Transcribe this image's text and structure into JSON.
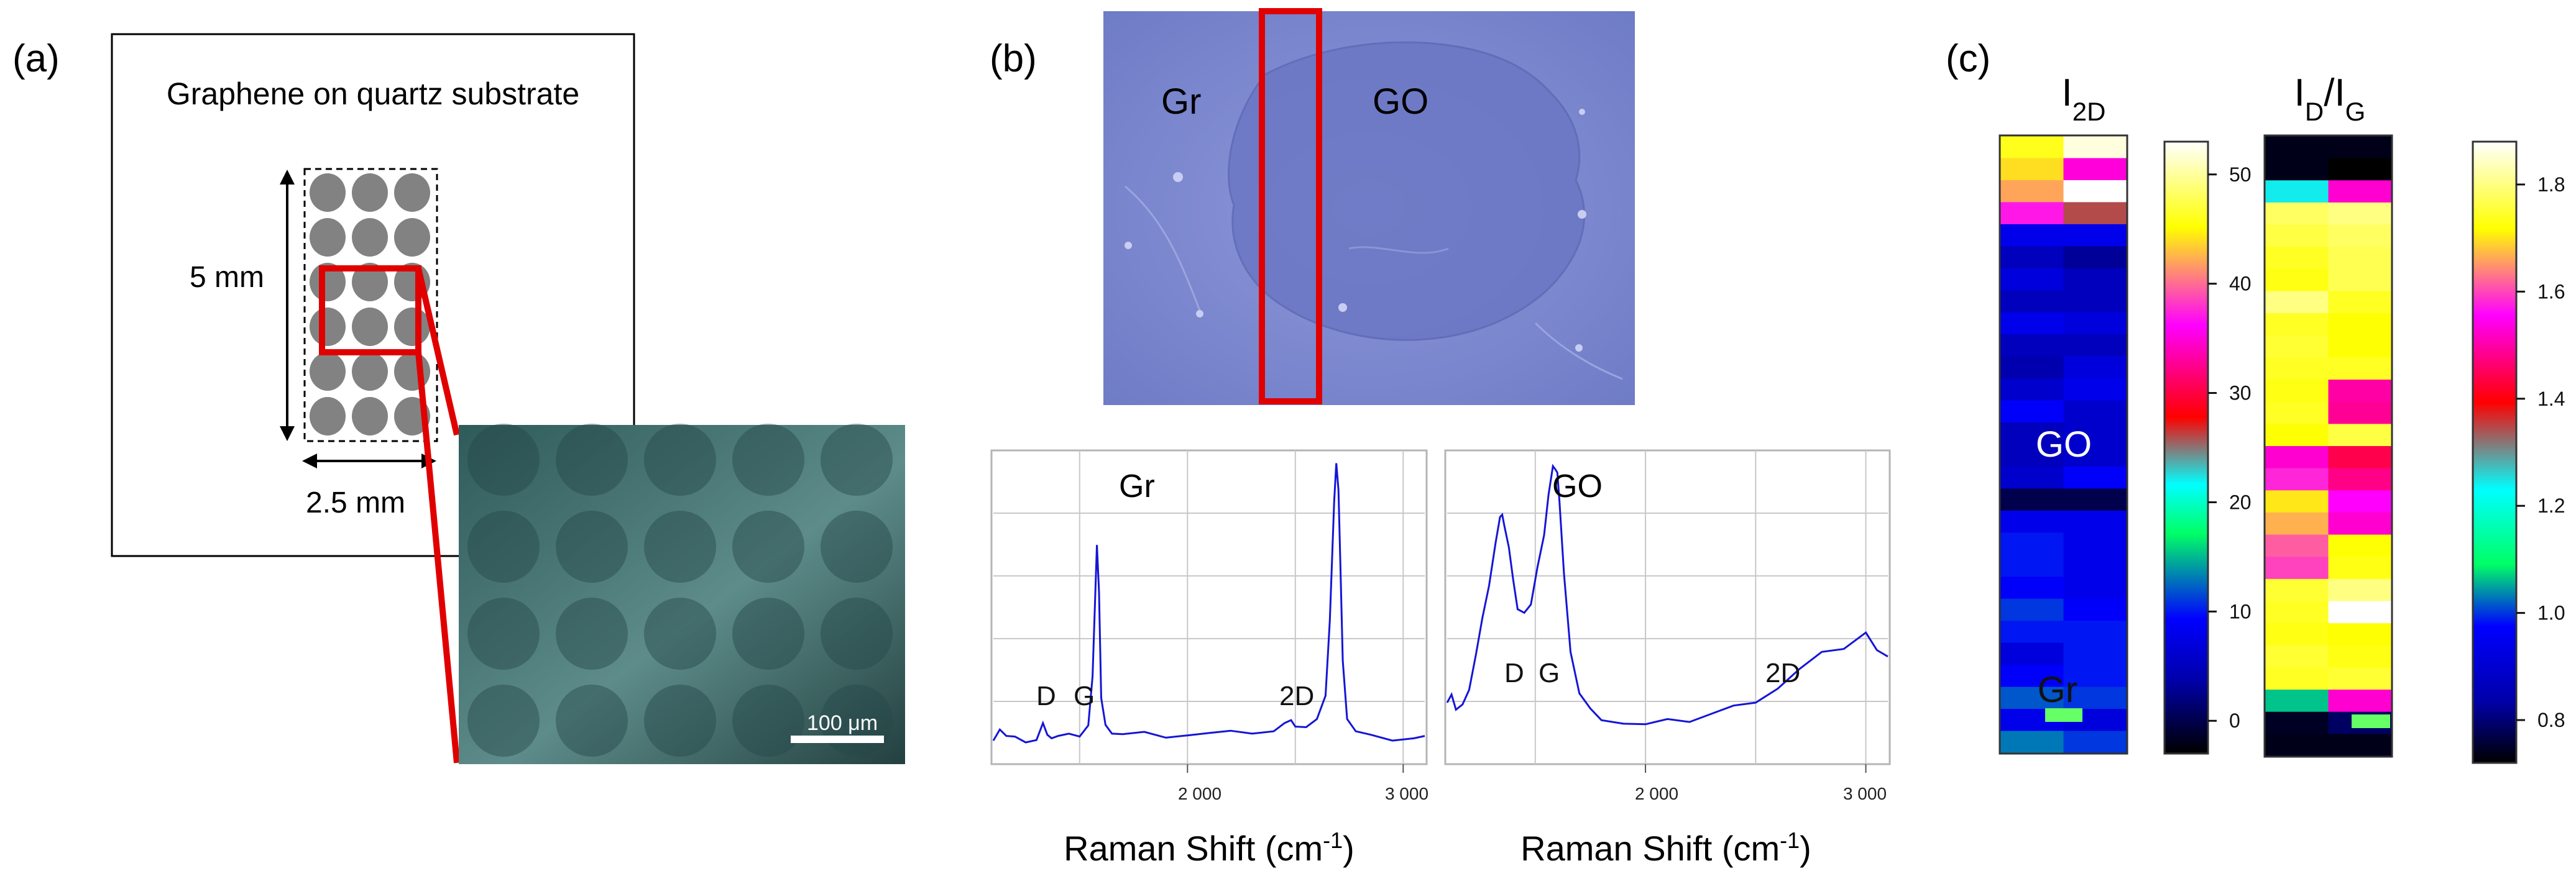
{
  "panels": {
    "a": {
      "label": "(a)",
      "title": "Graphene on quartz substrate",
      "height_dim": "5 mm",
      "width_dim": "2.5 mm",
      "scalebar": "100 μm"
    },
    "b": {
      "label": "(b)",
      "micro_left": "Gr",
      "micro_right": "GO",
      "spectra": [
        {
          "title": "Gr",
          "xlabel": "Raman Shift (cm-1)",
          "xlabel_main": "Raman Shift (cm",
          "xlabel_sup": "-1",
          "xlabel_end": ")",
          "ticks": [
            "2 000",
            "3 000"
          ],
          "peaks": [
            "D",
            "G",
            "2D"
          ]
        },
        {
          "title": "GO",
          "xlabel": "Raman Shift (cm-1)",
          "xlabel_main": "Raman Shift (cm",
          "xlabel_sup": "-1",
          "xlabel_end": ")",
          "ticks": [
            "2 000",
            "3 000"
          ],
          "peaks": [
            "D",
            "G",
            "2D"
          ]
        }
      ]
    },
    "c": {
      "label": "(c)",
      "map1_title_main": "I",
      "map1_title_sub": "2D",
      "map2_title_main": "I",
      "map2_title_sub1": "D",
      "map2_title_sep": "/I",
      "map2_title_sub2": "G",
      "map_label_go": "GO",
      "map_label_gr": "Gr",
      "cb1_ticks": [
        "50",
        "40",
        "30",
        "20",
        "10",
        "0"
      ],
      "cb2_ticks": [
        "1.8",
        "1.6",
        "1.4",
        "1.2",
        "1.0",
        "0.8"
      ]
    }
  },
  "chart_data": [
    {
      "type": "line",
      "title": "Gr",
      "xlabel": "Raman Shift (cm-1)",
      "ylabel": "",
      "xlim": [
        1100,
        3100
      ],
      "xticks": [
        2000,
        3000
      ],
      "series": [
        {
          "name": "Gr",
          "x": [
            1100,
            1130,
            1160,
            1200,
            1250,
            1300,
            1330,
            1350,
            1370,
            1400,
            1450,
            1500,
            1540,
            1560,
            1580,
            1590,
            1600,
            1620,
            1650,
            1700,
            1800,
            1900,
            2000,
            2100,
            2200,
            2300,
            2400,
            2450,
            2480,
            2500,
            2550,
            2600,
            2640,
            2660,
            2680,
            2690,
            2700,
            2710,
            2720,
            2740,
            2780,
            2850,
            2950,
            3050,
            3100
          ],
          "y": [
            0.05,
            0.08,
            0.05,
            0.04,
            0.04,
            0.04,
            0.09,
            0.07,
            0.05,
            0.05,
            0.05,
            0.06,
            0.09,
            0.25,
            0.72,
            0.55,
            0.18,
            0.08,
            0.07,
            0.06,
            0.06,
            0.06,
            0.06,
            0.06,
            0.06,
            0.07,
            0.07,
            0.09,
            0.12,
            0.09,
            0.08,
            0.1,
            0.2,
            0.45,
            0.85,
            1.0,
            0.9,
            0.6,
            0.3,
            0.12,
            0.07,
            0.05,
            0.05,
            0.05,
            0.05
          ]
        }
      ]
    },
    {
      "type": "line",
      "title": "GO",
      "xlabel": "Raman Shift (cm-1)",
      "ylabel": "",
      "xlim": [
        1100,
        3100
      ],
      "xticks": [
        2000,
        3000
      ],
      "series": [
        {
          "name": "GO",
          "x": [
            1100,
            1120,
            1140,
            1170,
            1200,
            1230,
            1260,
            1290,
            1320,
            1340,
            1350,
            1360,
            1380,
            1400,
            1420,
            1450,
            1480,
            1510,
            1540,
            1560,
            1580,
            1590,
            1600,
            1610,
            1630,
            1660,
            1700,
            1750,
            1800,
            1900,
            2000,
            2100,
            2200,
            2300,
            2400,
            2500,
            2600,
            2700,
            2800,
            2900,
            2950,
            3000,
            3050,
            3100
          ],
          "y": [
            0.18,
            0.2,
            0.14,
            0.15,
            0.22,
            0.33,
            0.45,
            0.58,
            0.72,
            0.8,
            0.8,
            0.78,
            0.7,
            0.58,
            0.5,
            0.48,
            0.5,
            0.62,
            0.75,
            0.88,
            0.97,
            0.98,
            0.96,
            0.85,
            0.6,
            0.35,
            0.2,
            0.14,
            0.12,
            0.1,
            0.09,
            0.1,
            0.11,
            0.13,
            0.15,
            0.18,
            0.22,
            0.28,
            0.33,
            0.36,
            0.38,
            0.4,
            0.36,
            0.33
          ]
        }
      ]
    },
    {
      "type": "heatmap",
      "title": "I2D",
      "colorbar_range": [
        -3,
        53
      ],
      "colorbar_ticks": [
        0,
        10,
        20,
        30,
        40,
        50
      ],
      "columns": 2,
      "rows": 28,
      "values": [
        [
          46,
          52
        ],
        [
          44,
          35
        ],
        [
          42,
          54
        ],
        [
          37,
          26
        ],
        [
          8,
          8
        ],
        [
          5,
          3
        ],
        [
          7,
          5
        ],
        [
          5,
          5
        ],
        [
          8,
          7
        ],
        [
          5,
          5
        ],
        [
          4,
          7
        ],
        [
          6,
          8
        ],
        [
          9,
          6
        ],
        [
          5,
          6
        ],
        [
          5,
          6
        ],
        [
          6,
          9
        ],
        [
          0,
          0
        ],
        [
          8,
          8
        ],
        [
          10,
          8
        ],
        [
          10,
          8
        ],
        [
          9,
          8
        ],
        [
          11,
          9
        ],
        [
          10,
          10
        ],
        [
          7,
          10
        ],
        [
          9,
          10
        ],
        [
          12,
          11
        ],
        [
          8,
          7
        ],
        [
          13,
          11
        ]
      ]
    },
    {
      "type": "heatmap",
      "title": "ID/IG",
      "colorbar_range": [
        0.72,
        1.88
      ],
      "colorbar_ticks": [
        0.8,
        1.0,
        1.2,
        1.4,
        1.6,
        1.8
      ],
      "columns": 2,
      "rows": 28,
      "values": [
        [
          0.74,
          0.74
        ],
        [
          0.74,
          0.72
        ],
        [
          1.24,
          1.5
        ],
        [
          1.78,
          1.8
        ],
        [
          1.76,
          1.78
        ],
        [
          1.74,
          1.77
        ],
        [
          1.73,
          1.77
        ],
        [
          1.8,
          1.74
        ],
        [
          1.74,
          1.72
        ],
        [
          1.75,
          1.72
        ],
        [
          1.74,
          1.74
        ],
        [
          1.73,
          1.47
        ],
        [
          1.74,
          1.46
        ],
        [
          1.72,
          1.76
        ],
        [
          1.5,
          1.41
        ],
        [
          1.56,
          1.45
        ],
        [
          1.7,
          1.53
        ],
        [
          1.66,
          1.5
        ],
        [
          1.6,
          1.72
        ],
        [
          1.58,
          1.73
        ],
        [
          1.75,
          1.8
        ],
        [
          1.74,
          1.88
        ],
        [
          1.73,
          1.72
        ],
        [
          1.75,
          1.73
        ],
        [
          1.74,
          1.75
        ],
        [
          1.1,
          1.5
        ],
        [
          0.75,
          0.8
        ],
        [
          0.74,
          0.74
        ]
      ]
    }
  ]
}
